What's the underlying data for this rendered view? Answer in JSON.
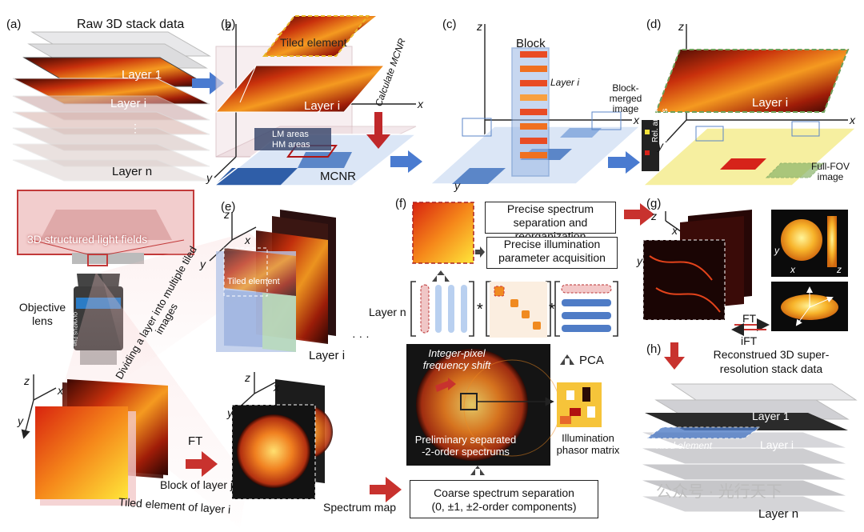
{
  "panels": {
    "a": "(a)",
    "b": "(b)",
    "c": "(c)",
    "d": "(d)",
    "e": "(e)",
    "f": "(f)",
    "g": "(g)",
    "h": "(h)"
  },
  "a": {
    "title": "Raw 3D stack data",
    "layer1": "Layer 1",
    "layeri": "Layer i",
    "layern": "Layer n",
    "dots": "⋮"
  },
  "b": {
    "tiled": "Tiled element",
    "layeri": "Layer i",
    "lm": "LM areas",
    "hm": "HM areas",
    "calc": "Calculate MCNR",
    "mcnr": "MCNR",
    "z": "z",
    "x": "x",
    "y": "y"
  },
  "c": {
    "block": "Block",
    "layeri": "Layer i",
    "merged": "Block-merged image",
    "z": "z",
    "x": "x",
    "y": "y"
  },
  "d": {
    "layeri": "Layer i",
    "rel": "Rel. areas",
    "unrel": "Unrel. areas",
    "fullfov": "Full-FOV image",
    "z": "z",
    "x": "x",
    "y": "y"
  },
  "optics": {
    "structured": "3D structured light fields",
    "objective": "Objective lens",
    "lens_text": "OLYMPUS Plan Apo N 60X/1.42 Oil ∞/0.17/FN26.5",
    "dividing": "Dividing a layer into multiple tiled images",
    "z": "z",
    "x": "x",
    "y": "y"
  },
  "e": {
    "tiled": "Tiled element",
    "layern": "Layer n",
    "layeri": "Layer i",
    "dots": "· · ·",
    "z": "z",
    "x": "x",
    "y": "y"
  },
  "bl": {
    "ft": "FT",
    "blockj": "Block of layer j",
    "tiled": "Tiled element of layer i",
    "spectrum": "Spectrum map",
    "z": "z",
    "x": "x",
    "y": "y"
  },
  "f": {
    "precise_sep": "Precise spectrum separation and reorganization",
    "precise_ill": "Precise illumination parameter acquisition",
    "pca": "PCA",
    "integer": "Integer-pixel frequency shift",
    "prelim": "Preliminary separated -2-order spectrums",
    "phasor": "Illumination phasor matrix",
    "coarse1": "Coarse spectrum separation",
    "coarse2": "(0, ±1, ±2-order components)",
    "star": "*"
  },
  "g": {
    "ft": "FT",
    "ift": "iFT",
    "x": "x",
    "y": "y",
    "z": "z"
  },
  "h": {
    "title": "Reconstrued 3D super-resolution stack data",
    "layer1": "Layer 1",
    "layeri": "Layer i",
    "layern": "Layer n",
    "tiled": "Tiled element"
  },
  "watermark": "公众号 · 光行天下",
  "colors": {
    "hot": "#e2541a",
    "blue": "#5b86c8",
    "red": "#d83a2f",
    "arrowblue": "#4a7bd0",
    "yellow": "#f5e96a",
    "green": "#6fa05a"
  }
}
